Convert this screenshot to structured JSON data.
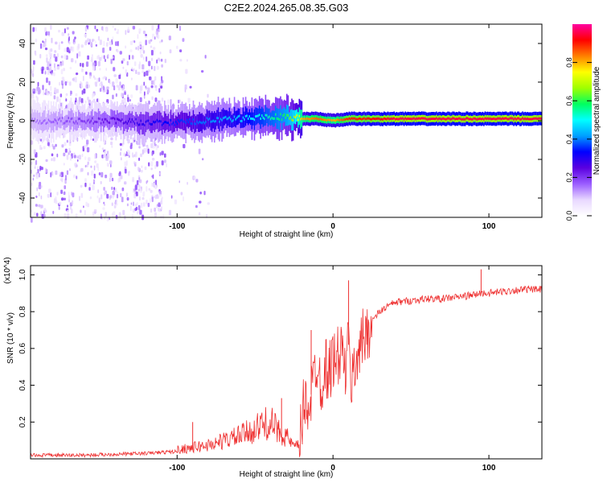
{
  "title": "C2E2.2024.265.08.35.G03",
  "colorbar": {
    "label": "Normalized spectral amplitude",
    "ticks": [
      0.0,
      0.2,
      0.4,
      0.6,
      0.8
    ],
    "tick_labels": [
      "0.0",
      "0.2",
      "0.4",
      "0.6",
      "0.8"
    ],
    "range": [
      0,
      1
    ],
    "colormap": [
      "#ffffff",
      "#e8d8ff",
      "#9a5cff",
      "#5a00e0",
      "#0000ff",
      "#00a0ff",
      "#00ffff",
      "#00ff60",
      "#a0ff00",
      "#ffff00",
      "#ff8000",
      "#ff0000",
      "#ff00a0"
    ]
  },
  "chart_data": [
    {
      "type": "heatmap",
      "title": "C2E2.2024.265.08.35.G03",
      "xlabel": "Height of straight line (km)",
      "ylabel": "Frequency (Hz)",
      "xlim": [
        -194,
        134
      ],
      "ylim": [
        -50,
        50
      ],
      "xticks": [
        -100,
        0,
        100
      ],
      "xtick_labels": [
        "-100",
        "0",
        "100"
      ],
      "yticks": [
        -40,
        -20,
        0,
        20,
        40
      ],
      "ytick_labels": [
        "-40",
        "-20",
        "0",
        "20",
        "40"
      ],
      "carrier_track": {
        "x": [
          -194,
          -160,
          -140,
          -120,
          -100,
          -80,
          -60,
          -50,
          -40,
          -30,
          -20,
          -10,
          0,
          10,
          20,
          40,
          60,
          80,
          100,
          120,
          134
        ],
        "y": [
          0,
          0,
          0,
          -1,
          -1,
          0,
          1,
          2,
          2,
          2,
          1,
          1,
          0,
          1,
          1,
          1,
          1,
          1,
          1,
          1,
          1
        ],
        "amplitude": [
          0.15,
          0.2,
          0.25,
          0.3,
          0.35,
          0.4,
          0.45,
          0.5,
          0.55,
          0.6,
          0.8,
          0.85,
          0.8,
          0.9,
          0.9,
          0.95,
          0.95,
          0.95,
          0.95,
          0.95,
          0.95
        ]
      },
      "noise_region_x": [
        -194,
        -110
      ]
    },
    {
      "type": "line",
      "xlabel": "Height of straight line (km)",
      "ylabel": "SNR (10 * v/v)",
      "y_multiplier": "(x10^4)",
      "xlim": [
        -194,
        134
      ],
      "ylim": [
        0,
        1.05
      ],
      "xticks": [
        -100,
        0,
        100
      ],
      "xtick_labels": [
        "-100",
        "0",
        "100"
      ],
      "yticks": [
        0.2,
        0.4,
        0.6,
        0.8,
        1.0
      ],
      "ytick_labels": [
        "0.2",
        "0.4",
        "0.6",
        "0.8",
        "1.0"
      ],
      "series": [
        {
          "color": "#ee3030",
          "x": [
            -194,
            -180,
            -160,
            -140,
            -120,
            -110,
            -100,
            -90,
            -80,
            -70,
            -60,
            -50,
            -45,
            -40,
            -35,
            -30,
            -25,
            -22,
            -20,
            -18,
            -15,
            -12,
            -10,
            -8,
            -5,
            -2,
            0,
            2,
            5,
            8,
            10,
            12,
            14,
            16,
            18,
            20,
            22,
            25,
            30,
            35,
            40,
            50,
            60,
            70,
            80,
            90,
            95,
            100,
            110,
            120,
            134
          ],
          "y": [
            0.02,
            0.02,
            0.02,
            0.025,
            0.03,
            0.035,
            0.04,
            0.05,
            0.06,
            0.08,
            0.1,
            0.13,
            0.15,
            0.16,
            0.12,
            0.1,
            0.05,
            0.06,
            0.2,
            0.32,
            0.3,
            0.45,
            0.55,
            0.4,
            0.5,
            0.48,
            0.55,
            0.52,
            0.6,
            0.48,
            0.62,
            0.4,
            0.5,
            0.6,
            0.62,
            0.66,
            0.7,
            0.75,
            0.8,
            0.83,
            0.85,
            0.86,
            0.87,
            0.87,
            0.88,
            0.89,
            0.9,
            0.9,
            0.91,
            0.92,
            0.92
          ]
        }
      ],
      "spikes": [
        {
          "x": 10,
          "y": 0.97
        },
        {
          "x": -14,
          "y": 0.7
        },
        {
          "x": 95,
          "y": 1.03
        },
        {
          "x": -90,
          "y": 0.2
        },
        {
          "x": -33,
          "y": 0.33
        }
      ]
    }
  ]
}
